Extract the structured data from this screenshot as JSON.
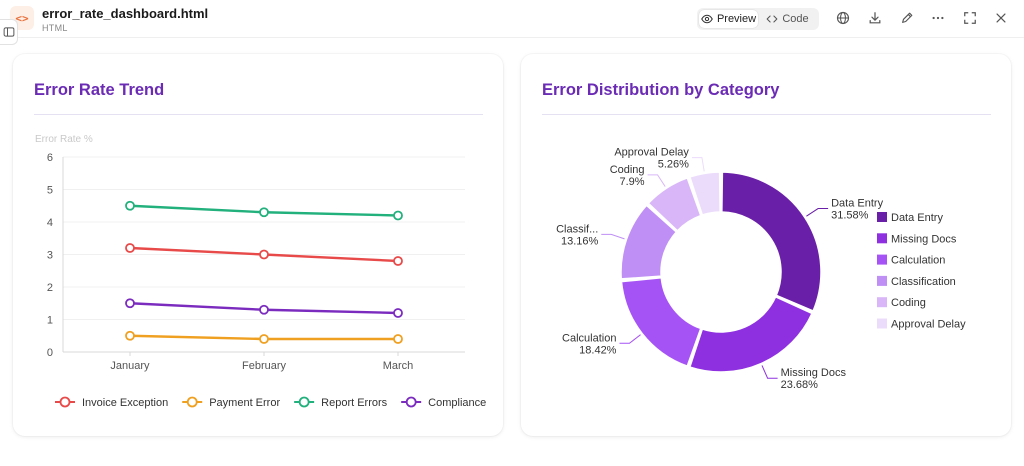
{
  "header": {
    "file_name": "error_rate_dashboard.html",
    "file_type": "HTML",
    "file_icon_glyph": "<>",
    "preview_label": "Preview",
    "code_label": "Code",
    "icons": [
      "panel-toggle-icon",
      "eye-icon",
      "code-icon",
      "globe-icon",
      "download-icon",
      "pencil-icon",
      "more-icon",
      "expand-icon",
      "close-icon"
    ]
  },
  "colors": {
    "title": "#6b2bb5",
    "invoice_exception": "#e84a4a",
    "payment_error": "#f0a020",
    "report_errors": "#22b07d",
    "compliance": "#7b2cbf",
    "pie": [
      "#6a1fa8",
      "#8e30e0",
      "#a653f5",
      "#bf8ff5",
      "#d8b6f8",
      "#ecdcfb"
    ]
  },
  "line_card": {
    "title": "Error Rate Trend"
  },
  "pie_card": {
    "title": "Error Distribution by Category"
  },
  "chart_data": [
    {
      "type": "line",
      "title": "Error Rate Trend",
      "ylabel": "Error Rate %",
      "xlabel": "",
      "categories": [
        "January",
        "February",
        "March"
      ],
      "ylim": [
        0,
        6
      ],
      "yticks": [
        0,
        1,
        2,
        3,
        4,
        5,
        6
      ],
      "grid": true,
      "legend": "bottom",
      "series": [
        {
          "name": "Invoice Exception",
          "values": [
            3.2,
            3.0,
            2.8
          ]
        },
        {
          "name": "Payment Error",
          "values": [
            0.5,
            0.4,
            0.4
          ]
        },
        {
          "name": "Report Errors",
          "values": [
            4.5,
            4.3,
            4.2
          ]
        },
        {
          "name": "Compliance",
          "values": [
            1.5,
            1.3,
            1.2
          ]
        }
      ]
    },
    {
      "type": "pie",
      "title": "Error Distribution by Category",
      "legend": "right",
      "categories": [
        "Data Entry",
        "Missing Docs",
        "Calculation",
        "Classification",
        "Coding",
        "Approval Delay"
      ],
      "slice_labels": [
        "Data Entry",
        "Missing Docs",
        "Calculation",
        "Classif...",
        "Coding",
        "Approval Delay"
      ],
      "values": [
        31.58,
        23.68,
        18.42,
        13.16,
        7.9,
        5.26
      ],
      "value_labels": [
        "31.58%",
        "23.68%",
        "18.42%",
        "13.16%",
        "7.9%",
        "5.26%"
      ]
    }
  ]
}
